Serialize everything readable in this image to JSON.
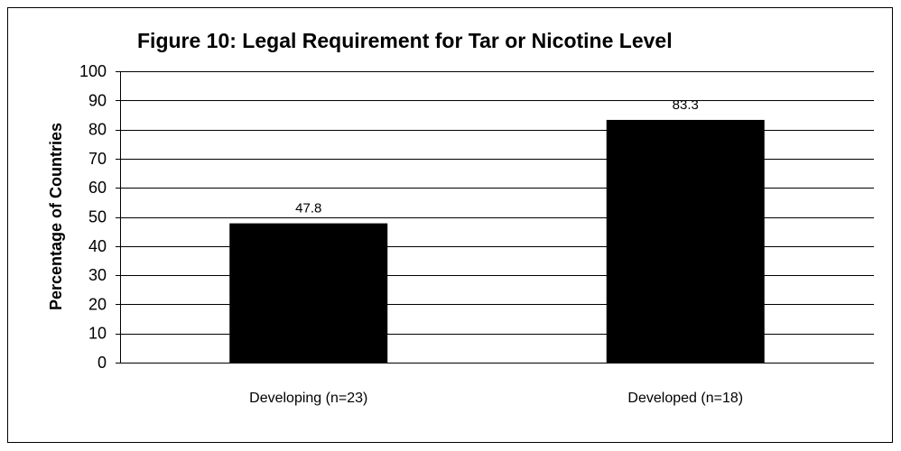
{
  "chart_data": {
    "type": "bar",
    "title": "Figure 10:  Legal Requirement for Tar or Nicotine Level",
    "xlabel": "",
    "ylabel": "Percentage  of Countries",
    "categories": [
      "Developing (n=23)",
      "Developed (n=18)"
    ],
    "values": [
      47.8,
      83.3
    ],
    "data_labels": [
      "47.8",
      "83.3"
    ],
    "ylim": [
      0,
      100
    ],
    "yticks": [
      0,
      10,
      20,
      30,
      40,
      50,
      60,
      70,
      80,
      90,
      100
    ],
    "grid": true,
    "legend": "none",
    "bar_color": "#000000"
  }
}
